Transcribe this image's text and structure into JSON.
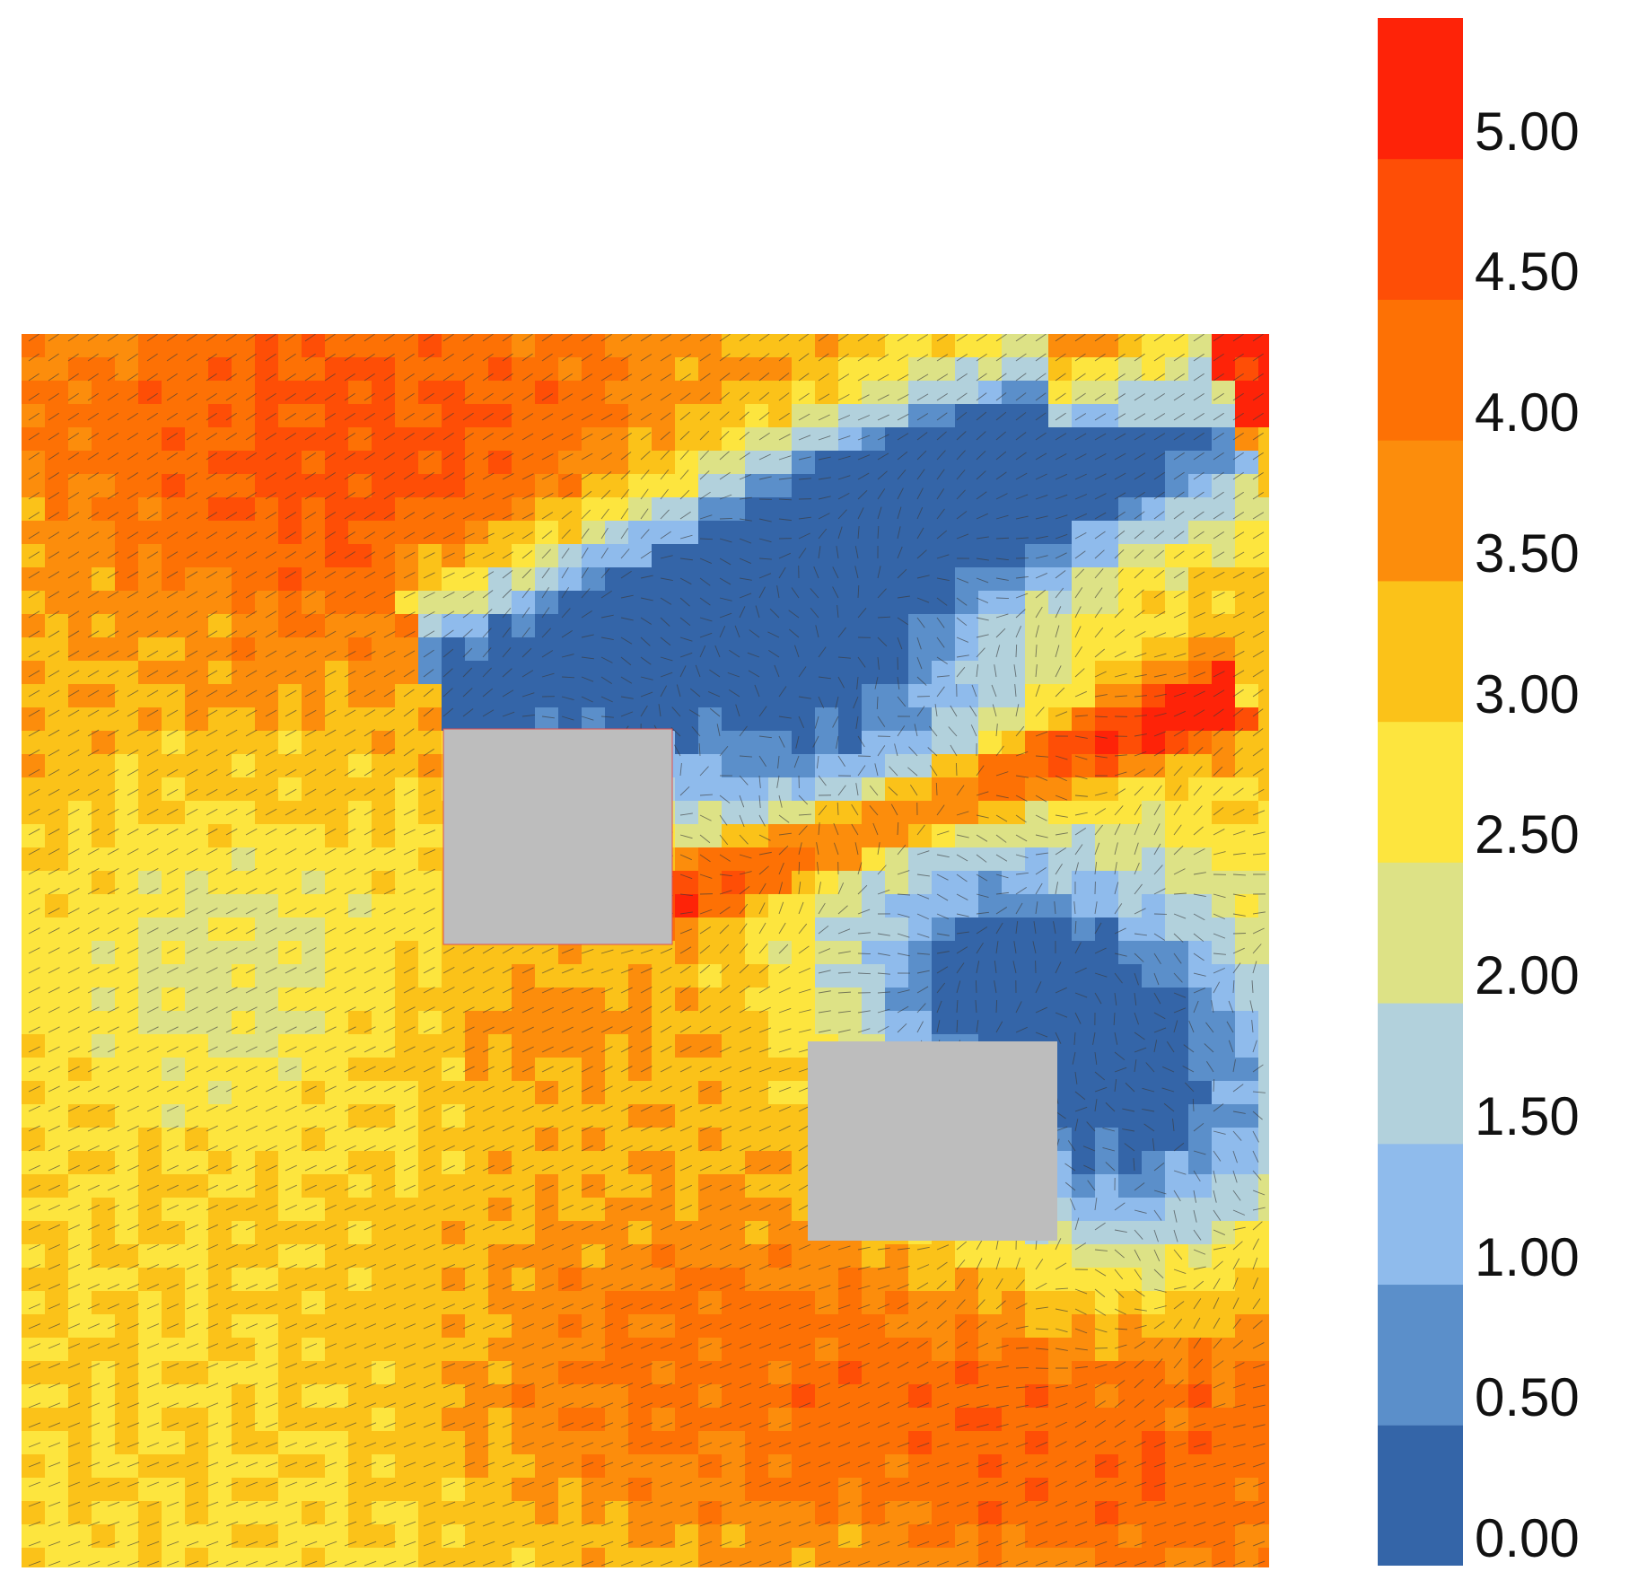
{
  "chart_data": {
    "type": "heatmap",
    "title": "",
    "xlabel": "",
    "ylabel": "",
    "grid": false,
    "legend": "colorbar-right",
    "colorbar": {
      "ticks": [
        "0.00",
        "0.50",
        "1.00",
        "1.50",
        "2.00",
        "2.50",
        "3.00",
        "3.50",
        "4.00",
        "4.50",
        "5.00"
      ],
      "bins": [
        {
          "from": 0.0,
          "to": 0.5,
          "color": "#3465a8"
        },
        {
          "from": 0.5,
          "to": 1.0,
          "color": "#5b8fca"
        },
        {
          "from": 1.0,
          "to": 1.5,
          "color": "#8fbbec"
        },
        {
          "from": 1.5,
          "to": 2.0,
          "color": "#b2d1dc"
        },
        {
          "from": 2.0,
          "to": 2.5,
          "color": "#dde286"
        },
        {
          "from": 2.5,
          "to": 3.0,
          "color": "#fde53e"
        },
        {
          "from": 3.0,
          "to": 3.5,
          "color": "#fbc219"
        },
        {
          "from": 3.5,
          "to": 4.0,
          "color": "#fc8d0c"
        },
        {
          "from": 4.0,
          "to": 4.5,
          "color": "#fd7105"
        },
        {
          "from": 4.5,
          "to": 5.0,
          "color": "#fe4e06"
        },
        {
          "from": 5.0,
          "to": 5.5,
          "color": "#fe2308"
        }
      ]
    },
    "obstacles": [
      {
        "name": "building-1",
        "color": "#bdbdbd"
      },
      {
        "name": "building-2",
        "color": "#bdbdbd"
      }
    ],
    "vectors": "wind-direction-arrows"
  }
}
